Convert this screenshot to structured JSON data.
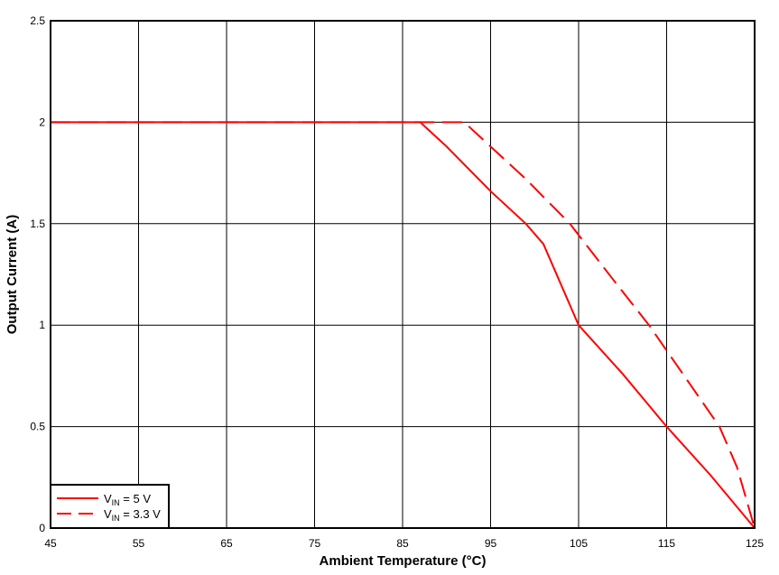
{
  "chart_data": {
    "type": "line",
    "title": "",
    "xlabel": "Ambient Temperature (°C)",
    "ylabel": "Output Current (A)",
    "xlim": [
      45,
      125
    ],
    "ylim": [
      0,
      2.5
    ],
    "xticks": [
      "45",
      "55",
      "65",
      "75",
      "85",
      "95",
      "105",
      "115",
      "125"
    ],
    "yticks": [
      "0",
      "0.5",
      "1",
      "1.5",
      "2",
      "2.5"
    ],
    "grid": true,
    "legend_position": "lower-left",
    "series": [
      {
        "name": "VIN = 5 V",
        "label_main": "V",
        "label_sub": "IN",
        "label_rest": " = 5 V",
        "color": "#ff0000",
        "style": "solid",
        "x": [
          45,
          87,
          90,
          95,
          99,
          101,
          105,
          110,
          115,
          120,
          125
        ],
        "y": [
          2.0,
          2.0,
          1.88,
          1.66,
          1.5,
          1.4,
          1.0,
          0.76,
          0.5,
          0.26,
          0.0
        ]
      },
      {
        "name": "VIN = 3.3 V",
        "label_main": "V",
        "label_sub": "IN",
        "label_rest": " = 3.3 V",
        "color": "#ff0000",
        "style": "dashed",
        "x": [
          45,
          92,
          95,
          99,
          104,
          109,
          113,
          117,
          121,
          123,
          125
        ],
        "y": [
          2.0,
          2.0,
          1.88,
          1.72,
          1.5,
          1.22,
          1.0,
          0.75,
          0.5,
          0.3,
          0.0
        ]
      }
    ]
  }
}
